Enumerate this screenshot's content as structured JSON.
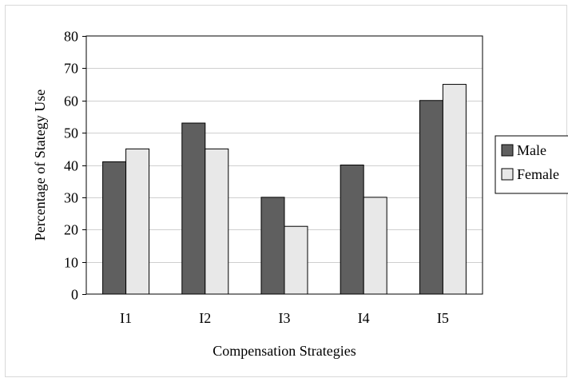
{
  "chart_data": {
    "type": "bar",
    "title": "",
    "xlabel": "Compensation Strategies",
    "ylabel": "Percentage of Stategy Use",
    "categories": [
      "I1",
      "I2",
      "I3",
      "I4",
      "I5"
    ],
    "series": [
      {
        "name": "Male",
        "values": [
          41,
          53,
          30,
          40,
          60
        ],
        "color": "#5f5f5f"
      },
      {
        "name": "Female",
        "values": [
          45,
          45,
          21,
          30,
          65
        ],
        "color": "#e8e8e8"
      }
    ],
    "ylim": [
      0,
      80
    ],
    "yticks": [
      0,
      10,
      20,
      30,
      40,
      50,
      60,
      70,
      80
    ],
    "grid": true,
    "legend_position": "right"
  }
}
